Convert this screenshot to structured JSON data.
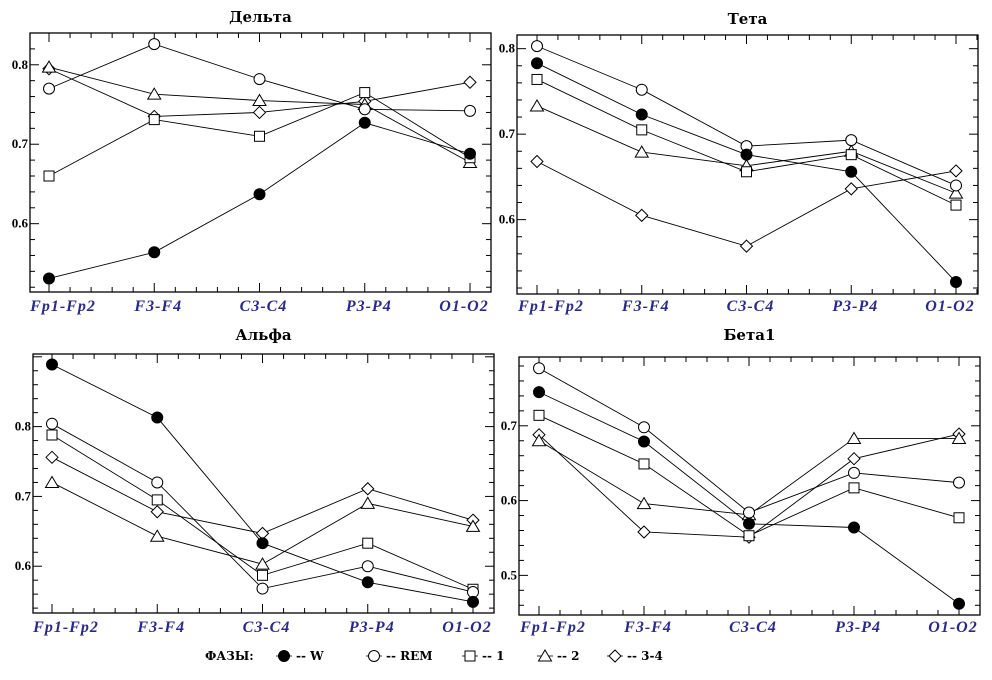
{
  "chart_data": [
    {
      "type": "line",
      "title": "Дельта",
      "categories": [
        "Fp1-Fp2",
        "F3-F4",
        "C3-C4",
        "P3-P4",
        "O1-O2"
      ],
      "ylim": [
        0.514,
        0.84
      ],
      "yticks": [
        {
          "value": 0.6,
          "label": "0.6"
        },
        {
          "value": 0.7,
          "label": "0.7"
        },
        {
          "value": 0.8,
          "label": "0.8"
        }
      ],
      "series": [
        {
          "name": "W",
          "marker": "filled-circle",
          "values": [
            0.531,
            0.564,
            0.637,
            0.727,
            0.688
          ]
        },
        {
          "name": "REM",
          "marker": "open-circle",
          "values": [
            0.77,
            0.826,
            0.782,
            0.744,
            0.742
          ]
        },
        {
          "name": "1",
          "marker": "square",
          "values": [
            0.66,
            0.731,
            0.71,
            0.765,
            0.683
          ]
        },
        {
          "name": "2",
          "marker": "triangle",
          "values": [
            0.797,
            0.763,
            0.755,
            0.75,
            0.677
          ]
        },
        {
          "name": "3-4",
          "marker": "diamond",
          "values": [
            0.795,
            0.735,
            0.74,
            0.754,
            0.778
          ]
        }
      ]
    },
    {
      "type": "line",
      "title": "Тета",
      "categories": [
        "Fp1-Fp2",
        "F3-F4",
        "C3-C4",
        "P3-P4",
        "O1-O2"
      ],
      "ylim": [
        0.513,
        0.816
      ],
      "yticks": [
        {
          "value": 0.6,
          "label": "0.6"
        },
        {
          "value": 0.7,
          "label": "0.7"
        },
        {
          "value": 0.8,
          "label": "0.8"
        }
      ],
      "series": [
        {
          "name": "W",
          "marker": "filled-circle",
          "values": [
            0.783,
            0.723,
            0.676,
            0.656,
            0.527
          ]
        },
        {
          "name": "REM",
          "marker": "open-circle",
          "values": [
            0.803,
            0.752,
            0.686,
            0.693,
            0.64
          ]
        },
        {
          "name": "1",
          "marker": "square",
          "values": [
            0.764,
            0.705,
            0.656,
            0.676,
            0.617
          ]
        },
        {
          "name": "2",
          "marker": "triangle",
          "values": [
            0.733,
            0.679,
            0.663,
            0.68,
            0.631
          ]
        },
        {
          "name": "3-4",
          "marker": "diamond",
          "values": [
            0.668,
            0.605,
            0.569,
            0.636,
            0.657
          ]
        }
      ]
    },
    {
      "type": "line",
      "title": "Альфа",
      "categories": [
        "Fp1-Fp2",
        "F3-F4",
        "C3-C4",
        "P3-P4",
        "O1-O2"
      ],
      "ylim": [
        0.533,
        0.904
      ],
      "yticks": [
        {
          "value": 0.6,
          "label": "0.6"
        },
        {
          "value": 0.7,
          "label": "0.7"
        },
        {
          "value": 0.8,
          "label": "0.8"
        }
      ],
      "series": [
        {
          "name": "W",
          "marker": "filled-circle",
          "values": [
            0.889,
            0.813,
            0.633,
            0.577,
            0.549
          ]
        },
        {
          "name": "REM",
          "marker": "open-circle",
          "values": [
            0.804,
            0.72,
            0.568,
            0.6,
            0.563
          ]
        },
        {
          "name": "1",
          "marker": "square",
          "values": [
            0.788,
            0.695,
            0.587,
            0.633,
            0.567
          ]
        },
        {
          "name": "2",
          "marker": "triangle",
          "values": [
            0.72,
            0.643,
            0.603,
            0.69,
            0.657
          ]
        },
        {
          "name": "3-4",
          "marker": "diamond",
          "values": [
            0.756,
            0.678,
            0.647,
            0.711,
            0.666
          ]
        }
      ]
    },
    {
      "type": "line",
      "title": "Бета1",
      "categories": [
        "Fp1-Fp2",
        "F3-F4",
        "C3-C4",
        "P3-P4",
        "O1-O2"
      ],
      "ylim": [
        0.447,
        0.792
      ],
      "yticks": [
        {
          "value": 0.5,
          "label": "0.5"
        },
        {
          "value": 0.6,
          "label": "0.6"
        },
        {
          "value": 0.7,
          "label": "0.7"
        }
      ],
      "series": [
        {
          "name": "W",
          "marker": "filled-circle",
          "values": [
            0.745,
            0.679,
            0.569,
            0.564,
            0.462
          ]
        },
        {
          "name": "REM",
          "marker": "open-circle",
          "values": [
            0.777,
            0.698,
            0.584,
            0.637,
            0.624
          ]
        },
        {
          "name": "1",
          "marker": "square",
          "values": [
            0.714,
            0.649,
            0.553,
            0.617,
            0.577
          ]
        },
        {
          "name": "2",
          "marker": "triangle",
          "values": [
            0.68,
            0.596,
            0.581,
            0.683,
            0.683
          ]
        },
        {
          "name": "3-4",
          "marker": "diamond",
          "values": [
            0.688,
            0.558,
            0.551,
            0.656,
            0.689
          ]
        }
      ]
    }
  ],
  "legend": {
    "title": "ФАЗЫ:",
    "placement": "bottom",
    "items": [
      {
        "marker": "filled-circle",
        "label": "-- W"
      },
      {
        "marker": "open-circle",
        "label": "-- REM"
      },
      {
        "marker": "square",
        "label": "-- 1"
      },
      {
        "marker": "triangle",
        "label": "-- 2"
      },
      {
        "marker": "diamond",
        "label": "-- 3-4"
      }
    ]
  },
  "colors": {
    "axis": "#000000",
    "tick_labels_x": "#2a2a8a",
    "lines": "#000000"
  }
}
